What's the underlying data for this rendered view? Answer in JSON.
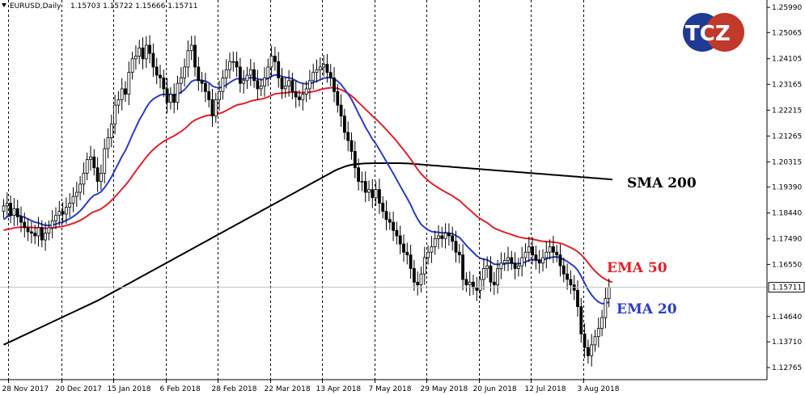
{
  "header": {
    "symbol_text": "EURUSD,Daily",
    "ohlc_text": "1.15703 1.15722 1.15666 1.15711"
  },
  "logo": {
    "text": "TCZ",
    "colors": [
      "#1f3a93",
      "#c0392b"
    ]
  },
  "current_price_label": "1.15711",
  "chart_data": {
    "type": "candlestick",
    "title": "",
    "xlabel": "",
    "ylabel": "",
    "ylim": [
      1.1232,
      1.2626
    ],
    "grid": true,
    "y_ticks": [
      "1.25990",
      "1.25065",
      "1.24105",
      "1.23165",
      "1.22215",
      "1.21265",
      "1.20315",
      "1.19390",
      "1.18440",
      "1.17490",
      "1.16550",
      "1.15711",
      "1.14640",
      "1.13710",
      "1.12765"
    ],
    "x_ticks": [
      "28 Nov 2017",
      "20 Dec 2017",
      "15 Jan 2018",
      "6 Feb 2018",
      "28 Feb 2018",
      "22 Mar 2018",
      "13 Apr 2018",
      "7 May 2018",
      "29 May 2018",
      "20 Jun 2018",
      "12 Jul 2018",
      "3 Aug 2018"
    ],
    "annotations": [
      {
        "text": "SMA 200",
        "color": "#000000"
      },
      {
        "text": "EMA 50",
        "color": "#e0202a"
      },
      {
        "text": "EMA 20",
        "color": "#2b3cc4"
      }
    ],
    "close": [
      1.187,
      1.188,
      1.1835,
      1.186,
      1.183,
      1.181,
      1.179,
      1.1775,
      1.177,
      1.176,
      1.179,
      1.1745,
      1.177,
      1.179,
      1.1815,
      1.1835,
      1.185,
      1.184,
      1.1865,
      1.188,
      1.1905,
      1.192,
      1.195,
      1.199,
      1.204,
      1.205,
      1.201,
      1.196,
      1.199,
      1.208,
      1.212,
      1.217,
      1.224,
      1.226,
      1.23,
      1.228,
      1.236,
      1.241,
      1.242,
      1.245,
      1.241,
      1.246,
      1.243,
      1.238,
      1.235,
      1.234,
      1.23,
      1.225,
      1.228,
      1.225,
      1.232,
      1.234,
      1.238,
      1.244,
      1.246,
      1.238,
      1.233,
      1.232,
      1.229,
      1.226,
      1.22,
      1.226,
      1.229,
      1.234,
      1.237,
      1.24,
      1.24,
      1.238,
      1.232,
      1.233,
      1.235,
      1.237,
      1.233,
      1.23,
      1.231,
      1.234,
      1.238,
      1.242,
      1.24,
      1.234,
      1.23,
      1.231,
      1.233,
      1.229,
      1.227,
      1.226,
      1.228,
      1.23,
      1.233,
      1.236,
      1.237,
      1.238,
      1.239,
      1.236,
      1.234,
      1.229,
      1.224,
      1.22,
      1.214,
      1.211,
      1.207,
      1.201,
      1.196,
      1.196,
      1.192,
      1.193,
      1.19,
      1.193,
      1.188,
      1.185,
      1.182,
      1.181,
      1.178,
      1.176,
      1.173,
      1.17,
      1.169,
      1.164,
      1.159,
      1.158,
      1.162,
      1.168,
      1.17,
      1.172,
      1.175,
      1.176,
      1.175,
      1.177,
      1.176,
      1.174,
      1.17,
      1.169,
      1.16,
      1.158,
      1.159,
      1.157,
      1.156,
      1.16,
      1.164,
      1.165,
      1.159,
      1.158,
      1.164,
      1.166,
      1.167,
      1.168,
      1.166,
      1.164,
      1.165,
      1.168,
      1.17,
      1.172,
      1.169,
      1.167,
      1.166,
      1.168,
      1.17,
      1.172,
      1.17,
      1.169,
      1.165,
      1.162,
      1.16,
      1.158,
      1.156,
      1.15,
      1.14,
      1.135,
      1.132,
      1.136,
      1.139,
      1.142,
      1.146,
      1.153,
      1.1571
    ],
    "ema20": [
      1.182,
      1.183,
      1.1835,
      1.1838,
      1.1836,
      1.1833,
      1.1828,
      1.1822,
      1.1816,
      1.181,
      1.1808,
      1.1802,
      1.1799,
      1.1798,
      1.18,
      1.1803,
      1.1808,
      1.1811,
      1.1817,
      1.1823,
      1.1831,
      1.184,
      1.1852,
      1.1866,
      1.1882,
      1.1898,
      1.1909,
      1.1914,
      1.1922,
      1.1937,
      1.1955,
      1.1976,
      1.2002,
      1.2026,
      1.2052,
      1.2073,
      1.2101,
      1.2131,
      1.2158,
      1.2186,
      1.2207,
      1.2231,
      1.225,
      1.2262,
      1.227,
      1.2277,
      1.228,
      1.2278,
      1.2279,
      1.2276,
      1.2281,
      1.2287,
      1.2297,
      1.2312,
      1.2327,
      1.2332,
      1.2332,
      1.2331,
      1.2328,
      1.2322,
      1.231,
      1.2305,
      1.2304,
      1.2307,
      1.2314,
      1.2323,
      1.2331,
      1.2337,
      1.2336,
      1.2336,
      1.2338,
      1.2341,
      1.234,
      1.2336,
      1.2334,
      1.2334,
      1.2338,
      1.2346,
      1.2351,
      1.235,
      1.2345,
      1.2342,
      1.2341,
      1.2336,
      1.233,
      1.2323,
      1.232,
      1.2318,
      1.2319,
      1.2323,
      1.2328,
      1.2333,
      1.2339,
      1.2341,
      1.2341,
      1.2337,
      1.2328,
      1.2316,
      1.2299,
      1.2281,
      1.2261,
      1.2236,
      1.2209,
      1.2185,
      1.2159,
      1.2138,
      1.2115,
      1.2098,
      1.2077,
      1.2055,
      1.2033,
      1.2011,
      1.1989,
      1.1966,
      1.1943,
      1.192,
      1.1898,
      1.1874,
      1.1846,
      1.1822,
      1.1802,
      1.1791,
      1.1782,
      1.1776,
      1.1774,
      1.1773,
      1.1771,
      1.1771,
      1.177,
      1.1768,
      1.1761,
      1.1754,
      1.174,
      1.1725,
      1.1712,
      1.1699,
      1.1686,
      1.1678,
      1.1674,
      1.1672,
      1.1664,
      1.1656,
      1.1655,
      1.1656,
      1.1657,
      1.166,
      1.166,
      1.1658,
      1.1658,
      1.166,
      1.1664,
      1.167,
      1.1672,
      1.1672,
      1.1671,
      1.1672,
      1.1675,
      1.168,
      1.1682,
      1.1683,
      1.1679,
      1.1673,
      1.1666,
      1.1657,
      1.1648,
      1.1634,
      1.1612,
      1.1587,
      1.1562,
      1.1543,
      1.1528,
      1.1517,
      1.1511,
      1.1512,
      1.1517
    ],
    "ema50": [
      1.178,
      1.1784,
      1.1786,
      1.1789,
      1.1791,
      1.1792,
      1.1792,
      1.1792,
      1.1791,
      1.179,
      1.179,
      1.1789,
      1.1788,
      1.1788,
      1.1789,
      1.1791,
      1.1793,
      1.1795,
      1.1798,
      1.1802,
      1.1806,
      1.1811,
      1.1817,
      1.1824,
      1.1833,
      1.1842,
      1.1849,
      1.1853,
      1.1859,
      1.1868,
      1.1878,
      1.189,
      1.1903,
      1.1917,
      1.1932,
      1.1946,
      1.1962,
      1.198,
      1.1998,
      1.2016,
      1.2032,
      1.2049,
      1.2064,
      1.2077,
      1.2088,
      1.2098,
      1.2107,
      1.2114,
      1.2121,
      1.2127,
      1.2135,
      1.2143,
      1.2153,
      1.2164,
      1.2177,
      1.2185,
      1.2191,
      1.2196,
      1.22,
      1.2203,
      1.2203,
      1.2205,
      1.2209,
      1.2214,
      1.222,
      1.2227,
      1.2234,
      1.224,
      1.2243,
      1.2246,
      1.225,
      1.2255,
      1.2258,
      1.226,
      1.2262,
      1.2265,
      1.227,
      1.2276,
      1.2281,
      1.2283,
      1.2284,
      1.2285,
      1.2287,
      1.2287,
      1.2287,
      1.2286,
      1.2286,
      1.2286,
      1.2288,
      1.229,
      1.2293,
      1.2297,
      1.23,
      1.2302,
      1.2304,
      1.2304,
      1.2301,
      1.2297,
      1.229,
      1.2283,
      1.2274,
      1.2263,
      1.225,
      1.2238,
      1.2225,
      1.2213,
      1.22,
      1.2189,
      1.2177,
      1.2164,
      1.215,
      1.2136,
      1.2122,
      1.2107,
      1.2091,
      1.2075,
      1.2059,
      1.2042,
      1.2023,
      1.2004,
      1.1988,
      1.1975,
      1.1963,
      1.1953,
      1.1944,
      1.1936,
      1.1928,
      1.1921,
      1.1914,
      1.1907,
      1.1898,
      1.189,
      1.1878,
      1.1866,
      1.1855,
      1.1844,
      1.1832,
      1.1823,
      1.1815,
      1.1808,
      1.1798,
      1.1789,
      1.1783,
      1.1778,
      1.1773,
      1.1769,
      1.1765,
      1.176,
      1.1756,
      1.1753,
      1.1751,
      1.175,
      1.1748,
      1.1745,
      1.1742,
      1.174,
      1.1739,
      1.1738,
      1.1737,
      1.1735,
      1.1733,
      1.1729,
      1.1723,
      1.1717,
      1.171,
      1.1702,
      1.1691,
      1.1677,
      1.1661,
      1.1645,
      1.1631,
      1.1619,
      1.1608,
      1.16,
      1.1594,
      1.159
    ],
    "sma200": [
      1.136,
      1.1366,
      1.1372,
      1.1378,
      1.1384,
      1.139,
      1.1396,
      1.1402,
      1.1408,
      1.1414,
      1.142,
      1.1426,
      1.1432,
      1.1438,
      1.1444,
      1.145,
      1.1456,
      1.1462,
      1.1468,
      1.1474,
      1.148,
      1.1486,
      1.1492,
      1.1498,
      1.1504,
      1.151,
      1.1516,
      1.1522,
      1.1529,
      1.1536,
      1.1543,
      1.155,
      1.1557,
      1.1564,
      1.1571,
      1.1578,
      1.1585,
      1.1592,
      1.1599,
      1.1606,
      1.1613,
      1.162,
      1.1627,
      1.1634,
      1.1641,
      1.1648,
      1.1655,
      1.1662,
      1.1669,
      1.1676,
      1.1683,
      1.169,
      1.1697,
      1.1704,
      1.1711,
      1.1718,
      1.1725,
      1.1732,
      1.1739,
      1.1746,
      1.1753,
      1.176,
      1.1767,
      1.1774,
      1.1781,
      1.1788,
      1.1795,
      1.1802,
      1.1809,
      1.1816,
      1.1823,
      1.183,
      1.1837,
      1.1844,
      1.1851,
      1.1858,
      1.1865,
      1.1872,
      1.1879,
      1.1886,
      1.1893,
      1.19,
      1.1907,
      1.1914,
      1.1921,
      1.1928,
      1.1935,
      1.1942,
      1.1949,
      1.1956,
      1.1963,
      1.197,
      1.1977,
      1.1984,
      1.1991,
      1.1998,
      1.2004,
      1.2009,
      1.2014,
      1.2018,
      1.2021,
      1.2023,
      1.2024,
      1.2025,
      1.2026,
      1.2026,
      1.2027,
      1.2027,
      1.2027,
      1.2027,
      1.2027,
      1.2027,
      1.2027,
      1.2027,
      1.2027,
      1.2026,
      1.2026,
      1.2025,
      1.2024,
      1.2023,
      1.2022,
      1.2021,
      1.202,
      1.2019,
      1.2018,
      1.2017,
      1.2016,
      1.2015,
      1.2014,
      1.2013,
      1.2012,
      1.2011,
      1.201,
      1.2009,
      1.2008,
      1.2007,
      1.2006,
      1.2005,
      1.2004,
      1.2003,
      1.2002,
      1.2001,
      1.2,
      1.1999,
      1.1998,
      1.1997,
      1.1996,
      1.1995,
      1.1994,
      1.1993,
      1.1992,
      1.1991,
      1.199,
      1.1989,
      1.1988,
      1.1987,
      1.1986,
      1.1985,
      1.1984,
      1.1983,
      1.1982,
      1.1981,
      1.198,
      1.1979,
      1.1978,
      1.1977,
      1.1976,
      1.1975,
      1.1974,
      1.1973,
      1.1972,
      1.1971,
      1.197,
      1.1969,
      1.1968,
      1.1967
    ]
  },
  "colors": {
    "candle": "#000000",
    "ema20": "#2b3cc4",
    "ema50": "#e0202a",
    "sma200": "#000000",
    "price_line": "#c0c0c0"
  }
}
